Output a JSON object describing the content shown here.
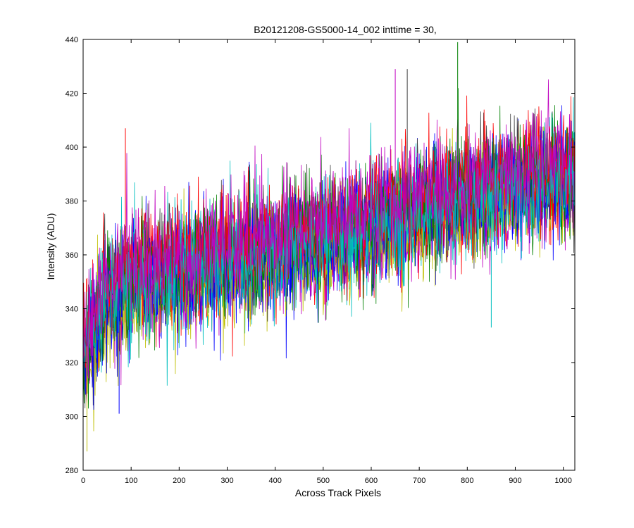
{
  "chart_data": {
    "type": "line",
    "title": "B20121208-GS5000-14_002 inttime = 30,",
    "xlabel": "Across Track Pixels",
    "ylabel": "Intensity (ADU)",
    "xlim": [
      0,
      1024
    ],
    "ylim": [
      280,
      440
    ],
    "xticks": [
      0,
      100,
      200,
      300,
      400,
      500,
      600,
      700,
      800,
      900,
      1000
    ],
    "yticks": [
      280,
      300,
      320,
      340,
      360,
      380,
      400,
      420,
      440
    ],
    "grid": false,
    "legend": "none",
    "series_colors": [
      "#0000ff",
      "#008000",
      "#ff0000",
      "#00bfbf",
      "#bf00bf",
      "#bfbf00",
      "#404040"
    ],
    "trend": {
      "description": "Many overlaid noisy across-track profiles; mean rises from ~325 at pixel 0 to ~352 near 100 and ~388 near 1024, noise roughly ±15 ADU with spikes",
      "x": [
        0,
        20,
        50,
        100,
        200,
        300,
        400,
        500,
        600,
        700,
        800,
        900,
        1000,
        1024
      ],
      "mean": [
        322,
        332,
        345,
        350,
        354,
        358,
        362,
        366,
        371,
        376,
        381,
        386,
        388,
        388
      ],
      "spread": 14
    },
    "series_count": 12,
    "notable_points": [
      {
        "x": 780,
        "y": 439
      },
      {
        "x": 850,
        "y": 333
      },
      {
        "x": 8,
        "y": 287
      },
      {
        "x": 75,
        "y": 301
      },
      {
        "x": 88,
        "y": 407
      },
      {
        "x": 650,
        "y": 429
      },
      {
        "x": 675,
        "y": 429
      }
    ]
  }
}
